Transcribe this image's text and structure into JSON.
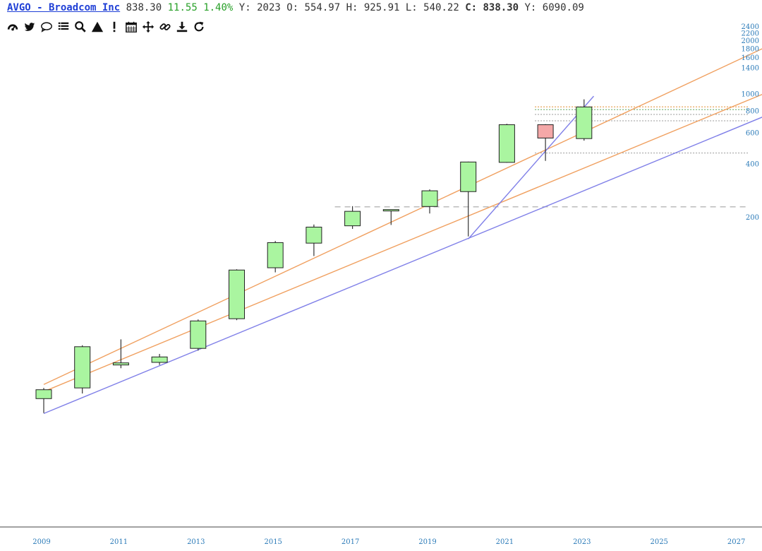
{
  "header": {
    "symbol_title": "AVGO - Broadcom Inc",
    "last": "838.30",
    "change": "11.55",
    "change_pct": "1.40%",
    "y_label": "Y:",
    "y_value": "2023",
    "o_label": "O:",
    "o_value": "554.97",
    "h_label": "H:",
    "h_value": "925.91",
    "l_label": "L:",
    "l_value": "540.22",
    "c_label": "C:",
    "c_value": "838.30",
    "y2_label": "Y:",
    "y2_value": "6090.09"
  },
  "toolbar": [
    {
      "name": "dashboard-icon"
    },
    {
      "name": "twitter-icon"
    },
    {
      "name": "comment-icon"
    },
    {
      "name": "list-icon"
    },
    {
      "name": "search-icon"
    },
    {
      "name": "warning-icon"
    },
    {
      "name": "calendar-icon"
    },
    {
      "name": "move-icon"
    },
    {
      "name": "link-icon"
    },
    {
      "name": "download-icon"
    },
    {
      "name": "refresh-icon"
    }
  ],
  "colors": {
    "up_fill": "#aaf5a0",
    "down_fill": "#f4a8a8",
    "trend_orange": "#f0a060",
    "trend_blue": "#8080e8",
    "axis_tick": "#2a7ab8"
  },
  "chart_data": {
    "type": "candlestick",
    "period": "yearly",
    "scale": "log",
    "x_ticks": [
      "2009",
      "2011",
      "2013",
      "2015",
      "2017",
      "2019",
      "2021",
      "2023",
      "2025",
      "2027"
    ],
    "y_ticks": [
      200,
      400,
      600,
      800,
      1000,
      1400,
      1600,
      1800,
      2000,
      2200,
      2400
    ],
    "candles": [
      {
        "year": 2009,
        "open": 18.7,
        "high": 21.5,
        "low": 15.5,
        "close": 21.0
      },
      {
        "year": 2010,
        "open": 21.5,
        "high": 37.5,
        "low": 20.0,
        "close": 36.8
      },
      {
        "year": 2011,
        "open": 29.0,
        "high": 40.5,
        "low": 27.8,
        "close": 29.8
      },
      {
        "year": 2012,
        "open": 30.0,
        "high": 33.5,
        "low": 29.0,
        "close": 32.2
      },
      {
        "year": 2013,
        "open": 36.0,
        "high": 52.5,
        "low": 35.0,
        "close": 51.5
      },
      {
        "year": 2014,
        "open": 53.0,
        "high": 101.0,
        "low": 52.0,
        "close": 100.0
      },
      {
        "year": 2015,
        "open": 103.0,
        "high": 146.0,
        "low": 97.0,
        "close": 143.0
      },
      {
        "year": 2016,
        "open": 142.0,
        "high": 181.0,
        "low": 120.0,
        "close": 175.0
      },
      {
        "year": 2017,
        "open": 178.0,
        "high": 230.0,
        "low": 171.0,
        "close": 215.0
      },
      {
        "year": 2018,
        "open": 218.0,
        "high": 220.0,
        "low": 180.0,
        "close": 220.0
      },
      {
        "year": 2019,
        "open": 229.0,
        "high": 286.0,
        "low": 209.0,
        "close": 281.0
      },
      {
        "year": 2020,
        "open": 278.0,
        "high": 411.0,
        "low": 155.0,
        "close": 409.0
      },
      {
        "year": 2021,
        "open": 407.0,
        "high": 673.0,
        "low": 405.0,
        "close": 665.0
      },
      {
        "year": 2022,
        "open": 665.0,
        "high": 670.0,
        "low": 415.0,
        "close": 559.0
      },
      {
        "year": 2023,
        "open": 554.97,
        "high": 925.91,
        "low": 540.22,
        "close": 838.3
      }
    ],
    "trendlines": [
      {
        "color": "orange",
        "from": {
          "year": 2009,
          "price": 22.5
        },
        "to": {
          "year": 2028,
          "price": 1960
        }
      },
      {
        "color": "orange",
        "from": {
          "year": 2009,
          "price": 20.5
        },
        "to": {
          "year": 2028,
          "price": 1070
        }
      },
      {
        "color": "blue",
        "from": {
          "year": 2009,
          "price": 15.4
        },
        "to": {
          "year": 2028,
          "price": 795
        }
      },
      {
        "color": "blue",
        "from": {
          "year": 2020,
          "price": 150
        },
        "to": {
          "year": 2023.25,
          "price": 965
        }
      }
    ],
    "horizontal_levels": [
      {
        "price": 228,
        "style": "dashed",
        "color": "#bbbbbb"
      },
      {
        "price": 460,
        "style": "dotted",
        "color": "#999999"
      },
      {
        "price": 700,
        "style": "dotted",
        "color": "#999999"
      },
      {
        "price": 760,
        "style": "dotted",
        "color": "#999999"
      },
      {
        "price": 810,
        "style": "dotted",
        "color": "#5aa05a"
      },
      {
        "price": 840,
        "style": "dotted",
        "color": "#e08a2c"
      }
    ]
  }
}
